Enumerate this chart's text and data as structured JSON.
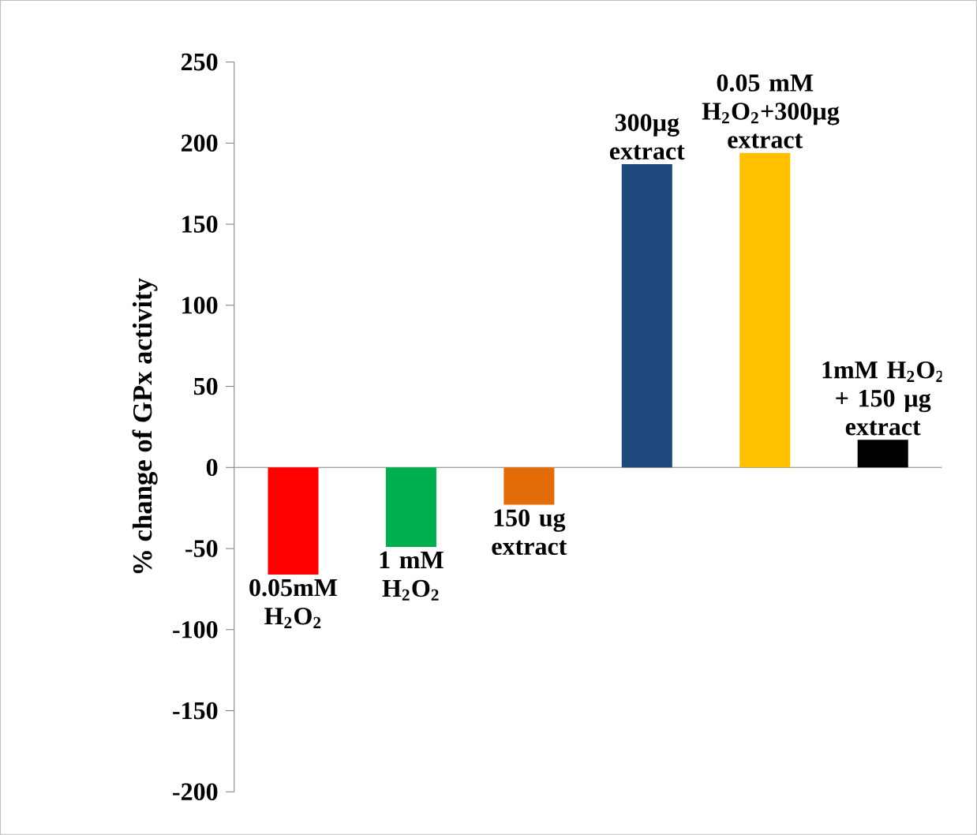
{
  "chart_data": {
    "type": "bar",
    "ylabel": "%  change of GPx activity",
    "categories": [
      "0.05mM H$_{2}$O$_{2}$",
      "1 mM H$_{2}$O$_{2}$",
      "150 ug extract",
      "300µg extract",
      "0.05 mM H$_{2}$O$_{2}$+300µg extract",
      "1mM H$_{2}$O$_{2}$ + 150 µg extract"
    ],
    "values": [
      -66,
      -49,
      -23,
      187,
      194,
      17
    ],
    "colors": [
      "#ff0000",
      "#00b050",
      "#e36c09",
      "#1f497d",
      "#ffc000",
      "#000000"
    ],
    "ylim": [
      -200,
      250
    ],
    "yticks": [
      -200,
      -150,
      -100,
      -50,
      0,
      50,
      100,
      150,
      200,
      250
    ]
  }
}
